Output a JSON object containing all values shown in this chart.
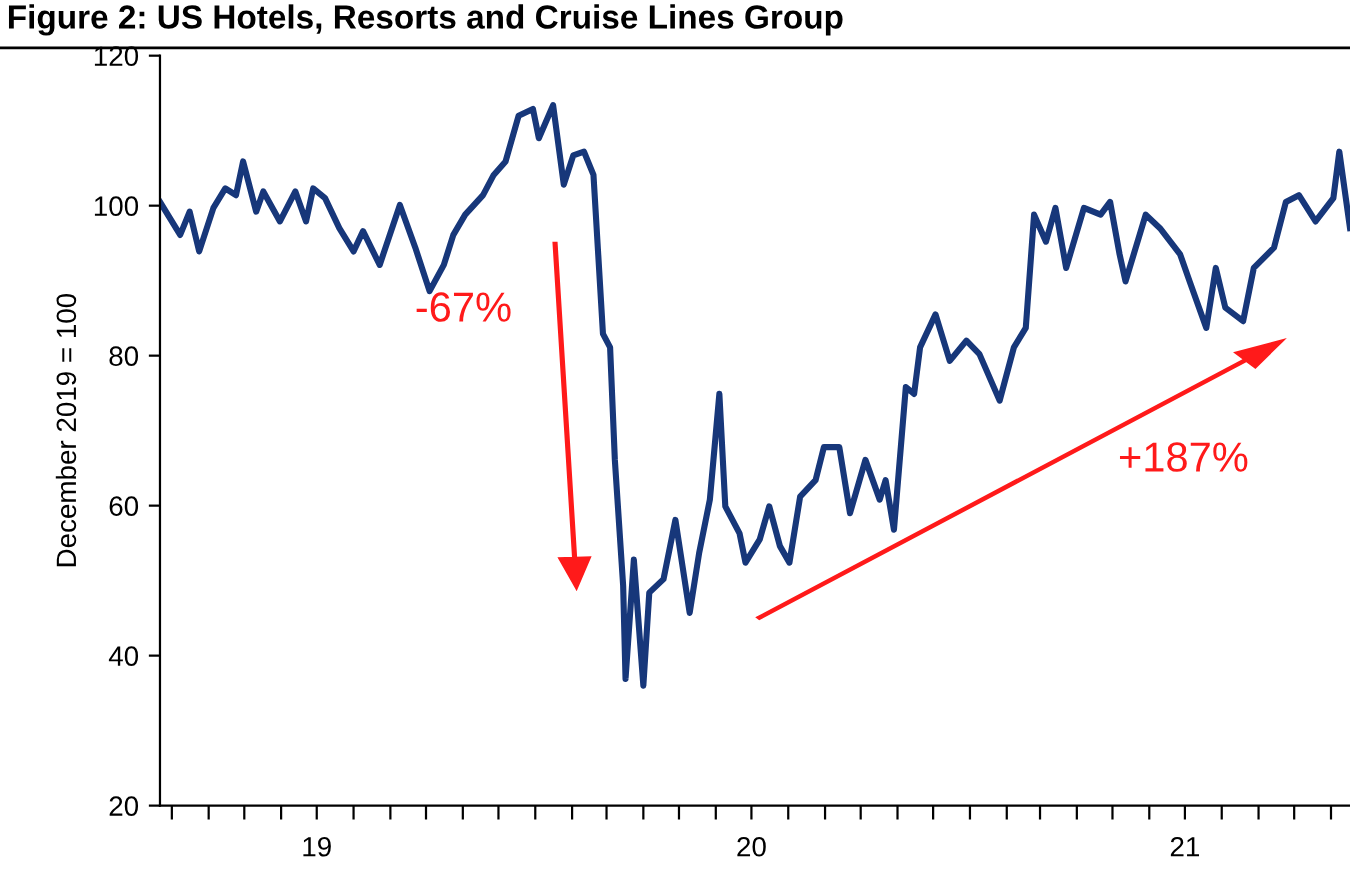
{
  "chart_data": {
    "type": "line",
    "title": "Figure 2: US Hotels, Resorts and Cruise Lines Group",
    "ylabel": "December 2019 = 100",
    "x": [
      "2019-02-19",
      "2019-03-08",
      "2019-03-16",
      "2019-03-24",
      "2019-04-05",
      "2019-04-15",
      "2019-04-24",
      "2019-04-30",
      "2019-05-11",
      "2019-05-17",
      "2019-05-31",
      "2019-06-13",
      "2019-06-22",
      "2019-06-28",
      "2019-07-08",
      "2019-07-20",
      "2019-08-01",
      "2019-08-09",
      "2019-08-23",
      "2019-09-09",
      "2019-09-22",
      "2019-10-04",
      "2019-10-16",
      "2019-10-24",
      "2019-11-03",
      "2019-11-18",
      "2019-11-27",
      "2019-12-07",
      "2019-12-18",
      "2019-12-30",
      "2020-01-04",
      "2020-01-16",
      "2020-01-25",
      "2020-02-02",
      "2020-02-11",
      "2020-02-19",
      "2020-02-27",
      "2020-03-04",
      "2020-03-08",
      "2020-03-15",
      "2020-03-17",
      "2020-03-24",
      "2020-04-01",
      "2020-04-06",
      "2020-04-18",
      "2020-04-28",
      "2020-05-10",
      "2020-05-18",
      "2020-05-27",
      "2020-06-04",
      "2020-06-09",
      "2020-06-21",
      "2020-06-26",
      "2020-07-08",
      "2020-07-16",
      "2020-07-25",
      "2020-08-02",
      "2020-08-11",
      "2020-08-24",
      "2020-08-31",
      "2020-09-13",
      "2020-09-22",
      "2020-10-05",
      "2020-10-17",
      "2020-10-22",
      "2020-10-29",
      "2020-11-08",
      "2020-11-15",
      "2020-11-20",
      "2020-12-03",
      "2020-12-15",
      "2020-12-29",
      "2021-01-09",
      "2021-01-26",
      "2021-02-07",
      "2021-02-17",
      "2021-02-24",
      "2021-03-06",
      "2021-03-14",
      "2021-03-23",
      "2021-04-07",
      "2021-04-21",
      "2021-04-29",
      "2021-05-07",
      "2021-05-12",
      "2021-05-29",
      "2021-06-10",
      "2021-06-27",
      "2021-07-05",
      "2021-07-19",
      "2021-07-27",
      "2021-08-04",
      "2021-08-19",
      "2021-08-28",
      "2021-09-14",
      "2021-09-24",
      "2021-10-05",
      "2021-10-19",
      "2021-11-03",
      "2021-11-08",
      "2021-11-17"
    ],
    "series": [
      {
        "color": "#17377a",
        "values": [
          100.5,
          96.1,
          99.2,
          93.9,
          99.7,
          102.3,
          101.4,
          105.9,
          99.2,
          101.9,
          97.9,
          101.9,
          97.9,
          102.3,
          101.0,
          97.0,
          93.9,
          96.6,
          92.1,
          100.1,
          94.4,
          88.6,
          92.1,
          96.1,
          98.8,
          101.4,
          104.1,
          105.9,
          112.0,
          112.9,
          109.0,
          113.4,
          102.8,
          106.7,
          107.2,
          104.1,
          82.9,
          81.1,
          66.1,
          49.3,
          36.9,
          52.8,
          36.0,
          48.4,
          50.2,
          58.1,
          45.7,
          53.7,
          60.8,
          74.9,
          59.9,
          56.3,
          52.4,
          55.5,
          59.9,
          54.6,
          52.4,
          61.2,
          63.4,
          67.8,
          67.8,
          59.0,
          66.1,
          60.8,
          63.4,
          56.8,
          75.8,
          74.9,
          81.1,
          85.5,
          79.3,
          82.0,
          80.2,
          74.0,
          81.1,
          83.7,
          98.8,
          95.2,
          99.7,
          91.7,
          99.7,
          98.8,
          100.5,
          93.5,
          89.9,
          98.8,
          97.0,
          93.5,
          89.9,
          83.7,
          91.7,
          86.4,
          84.6,
          91.7,
          94.4,
          100.5,
          101.4,
          97.9,
          101.0,
          107.2,
          97.0
        ]
      }
    ],
    "xlim": [
      "2019-02-19",
      "2021-11-17"
    ],
    "xticks": [
      {
        "value": "2019-03-01",
        "label": null
      },
      {
        "value": "2019-04-01",
        "label": null
      },
      {
        "value": "2019-05-01",
        "label": null
      },
      {
        "value": "2019-06-01",
        "label": null
      },
      {
        "value": "2019-07-01",
        "label": "19"
      },
      {
        "value": "2019-08-01",
        "label": null
      },
      {
        "value": "2019-09-01",
        "label": null
      },
      {
        "value": "2019-10-01",
        "label": null
      },
      {
        "value": "2019-11-01",
        "label": null
      },
      {
        "value": "2019-12-01",
        "label": null
      },
      {
        "value": "2020-01-01",
        "label": null
      },
      {
        "value": "2020-02-01",
        "label": null
      },
      {
        "value": "2020-03-01",
        "label": null
      },
      {
        "value": "2020-04-01",
        "label": null
      },
      {
        "value": "2020-05-01",
        "label": null
      },
      {
        "value": "2020-06-01",
        "label": null
      },
      {
        "value": "2020-07-01",
        "label": "20"
      },
      {
        "value": "2020-08-01",
        "label": null
      },
      {
        "value": "2020-09-01",
        "label": null
      },
      {
        "value": "2020-10-01",
        "label": null
      },
      {
        "value": "2020-11-01",
        "label": null
      },
      {
        "value": "2020-12-01",
        "label": null
      },
      {
        "value": "2021-01-01",
        "label": null
      },
      {
        "value": "2021-02-01",
        "label": null
      },
      {
        "value": "2021-03-01",
        "label": null
      },
      {
        "value": "2021-04-01",
        "label": null
      },
      {
        "value": "2021-05-01",
        "label": null
      },
      {
        "value": "2021-06-01",
        "label": null
      },
      {
        "value": "2021-07-01",
        "label": "21"
      },
      {
        "value": "2021-08-01",
        "label": null
      },
      {
        "value": "2021-09-01",
        "label": null
      },
      {
        "value": "2021-10-01",
        "label": null
      },
      {
        "value": "2021-11-01",
        "label": null
      }
    ],
    "ylim": [
      20,
      120
    ],
    "yticks": [
      20,
      40,
      60,
      80,
      100,
      120
    ],
    "grid": false,
    "legend": false,
    "marker": "none",
    "line_style": "solid",
    "annotations": [
      "-67%",
      "+187%"
    ]
  }
}
